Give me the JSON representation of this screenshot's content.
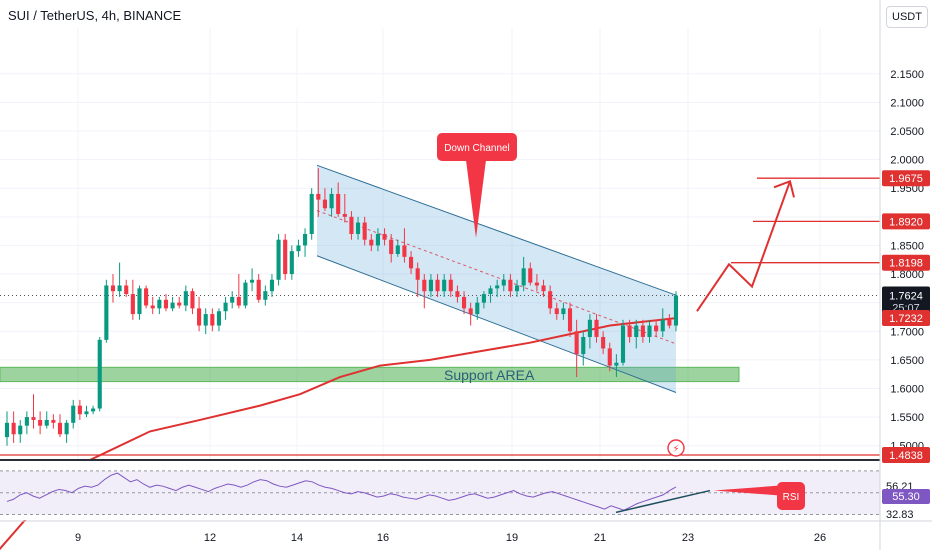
{
  "header": {
    "title": "SUI / TetherUS, 4h, BINANCE",
    "currency_button": "USDT"
  },
  "colors": {
    "up": "#089981",
    "down": "#f23645",
    "ma": "#e03131",
    "channel": "#2f6f96",
    "support": "#5cb85c"
  },
  "chart_data": {
    "type": "candlestick",
    "symbol": "SUI / TetherUS",
    "interval": "4h",
    "exchange": "BINANCE",
    "y_axis": {
      "range": [
        1.475,
        2.23
      ],
      "ticks": [
        "2.1500",
        "2.1000",
        "2.0500",
        "2.0000",
        "1.9500",
        "1.9000",
        "1.8500",
        "1.8000",
        "1.7500",
        "1.7000",
        "1.6500",
        "1.6000",
        "1.5500",
        "1.5000"
      ]
    },
    "x_axis": {
      "ticks": [
        "9",
        "12",
        "14",
        "16",
        "19",
        "21",
        "23",
        "26"
      ]
    },
    "price_labels": {
      "current": "1.7624",
      "countdown": "25:07",
      "ma_value": "1.7232",
      "levels": [
        "1.9675",
        "1.8920",
        "1.8198",
        "1.4838"
      ]
    },
    "candles": [
      {
        "o": 1.515,
        "h": 1.56,
        "l": 1.5,
        "c": 1.54
      },
      {
        "o": 1.54,
        "h": 1.56,
        "l": 1.505,
        "c": 1.52
      },
      {
        "o": 1.52,
        "h": 1.545,
        "l": 1.505,
        "c": 1.535
      },
      {
        "o": 1.535,
        "h": 1.56,
        "l": 1.52,
        "c": 1.55
      },
      {
        "o": 1.55,
        "h": 1.59,
        "l": 1.53,
        "c": 1.545
      },
      {
        "o": 1.545,
        "h": 1.56,
        "l": 1.52,
        "c": 1.535
      },
      {
        "o": 1.535,
        "h": 1.56,
        "l": 1.53,
        "c": 1.545
      },
      {
        "o": 1.545,
        "h": 1.555,
        "l": 1.53,
        "c": 1.54
      },
      {
        "o": 1.54,
        "h": 1.555,
        "l": 1.515,
        "c": 1.52
      },
      {
        "o": 1.52,
        "h": 1.545,
        "l": 1.505,
        "c": 1.54
      },
      {
        "o": 1.54,
        "h": 1.58,
        "l": 1.53,
        "c": 1.57
      },
      {
        "o": 1.57,
        "h": 1.58,
        "l": 1.545,
        "c": 1.555
      },
      {
        "o": 1.555,
        "h": 1.57,
        "l": 1.55,
        "c": 1.56
      },
      {
        "o": 1.56,
        "h": 1.57,
        "l": 1.555,
        "c": 1.565
      },
      {
        "o": 1.565,
        "h": 1.69,
        "l": 1.56,
        "c": 1.685
      },
      {
        "o": 1.685,
        "h": 1.79,
        "l": 1.68,
        "c": 1.78
      },
      {
        "o": 1.78,
        "h": 1.8,
        "l": 1.75,
        "c": 1.77
      },
      {
        "o": 1.77,
        "h": 1.82,
        "l": 1.76,
        "c": 1.78
      },
      {
        "o": 1.78,
        "h": 1.79,
        "l": 1.76,
        "c": 1.765
      },
      {
        "o": 1.765,
        "h": 1.79,
        "l": 1.72,
        "c": 1.73
      },
      {
        "o": 1.73,
        "h": 1.78,
        "l": 1.72,
        "c": 1.775
      },
      {
        "o": 1.775,
        "h": 1.78,
        "l": 1.74,
        "c": 1.745
      },
      {
        "o": 1.745,
        "h": 1.76,
        "l": 1.73,
        "c": 1.74
      },
      {
        "o": 1.74,
        "h": 1.76,
        "l": 1.73,
        "c": 1.755
      },
      {
        "o": 1.755,
        "h": 1.765,
        "l": 1.735,
        "c": 1.74
      },
      {
        "o": 1.74,
        "h": 1.76,
        "l": 1.735,
        "c": 1.75
      },
      {
        "o": 1.75,
        "h": 1.76,
        "l": 1.74,
        "c": 1.745
      },
      {
        "o": 1.745,
        "h": 1.78,
        "l": 1.735,
        "c": 1.77
      },
      {
        "o": 1.77,
        "h": 1.775,
        "l": 1.73,
        "c": 1.74
      },
      {
        "o": 1.74,
        "h": 1.76,
        "l": 1.7,
        "c": 1.71
      },
      {
        "o": 1.71,
        "h": 1.74,
        "l": 1.695,
        "c": 1.73
      },
      {
        "o": 1.73,
        "h": 1.74,
        "l": 1.7,
        "c": 1.71
      },
      {
        "o": 1.71,
        "h": 1.74,
        "l": 1.7,
        "c": 1.735
      },
      {
        "o": 1.735,
        "h": 1.76,
        "l": 1.72,
        "c": 1.75
      },
      {
        "o": 1.75,
        "h": 1.77,
        "l": 1.74,
        "c": 1.76
      },
      {
        "o": 1.76,
        "h": 1.8,
        "l": 1.74,
        "c": 1.745
      },
      {
        "o": 1.745,
        "h": 1.79,
        "l": 1.74,
        "c": 1.785
      },
      {
        "o": 1.785,
        "h": 1.81,
        "l": 1.77,
        "c": 1.79
      },
      {
        "o": 1.79,
        "h": 1.8,
        "l": 1.75,
        "c": 1.755
      },
      {
        "o": 1.755,
        "h": 1.78,
        "l": 1.745,
        "c": 1.77
      },
      {
        "o": 1.77,
        "h": 1.8,
        "l": 1.76,
        "c": 1.79
      },
      {
        "o": 1.79,
        "h": 1.87,
        "l": 1.78,
        "c": 1.86
      },
      {
        "o": 1.86,
        "h": 1.87,
        "l": 1.79,
        "c": 1.8
      },
      {
        "o": 1.8,
        "h": 1.85,
        "l": 1.79,
        "c": 1.84
      },
      {
        "o": 1.84,
        "h": 1.86,
        "l": 1.83,
        "c": 1.85
      },
      {
        "o": 1.85,
        "h": 1.88,
        "l": 1.83,
        "c": 1.87
      },
      {
        "o": 1.87,
        "h": 1.95,
        "l": 1.86,
        "c": 1.94
      },
      {
        "o": 1.94,
        "h": 1.985,
        "l": 1.9,
        "c": 1.93
      },
      {
        "o": 1.93,
        "h": 1.95,
        "l": 1.91,
        "c": 1.915
      },
      {
        "o": 1.915,
        "h": 1.95,
        "l": 1.9,
        "c": 1.94
      },
      {
        "o": 1.94,
        "h": 1.96,
        "l": 1.9,
        "c": 1.905
      },
      {
        "o": 1.905,
        "h": 1.94,
        "l": 1.89,
        "c": 1.9
      },
      {
        "o": 1.9,
        "h": 1.91,
        "l": 1.86,
        "c": 1.87
      },
      {
        "o": 1.87,
        "h": 1.9,
        "l": 1.86,
        "c": 1.89
      },
      {
        "o": 1.89,
        "h": 1.9,
        "l": 1.85,
        "c": 1.86
      },
      {
        "o": 1.86,
        "h": 1.87,
        "l": 1.84,
        "c": 1.85
      },
      {
        "o": 1.85,
        "h": 1.88,
        "l": 1.84,
        "c": 1.87
      },
      {
        "o": 1.87,
        "h": 1.88,
        "l": 1.85,
        "c": 1.86
      },
      {
        "o": 1.86,
        "h": 1.87,
        "l": 1.82,
        "c": 1.835
      },
      {
        "o": 1.835,
        "h": 1.86,
        "l": 1.83,
        "c": 1.85
      },
      {
        "o": 1.85,
        "h": 1.88,
        "l": 1.82,
        "c": 1.83
      },
      {
        "o": 1.83,
        "h": 1.84,
        "l": 1.8,
        "c": 1.81
      },
      {
        "o": 1.81,
        "h": 1.82,
        "l": 1.76,
        "c": 1.79
      },
      {
        "o": 1.79,
        "h": 1.8,
        "l": 1.74,
        "c": 1.77
      },
      {
        "o": 1.77,
        "h": 1.8,
        "l": 1.76,
        "c": 1.79
      },
      {
        "o": 1.79,
        "h": 1.8,
        "l": 1.76,
        "c": 1.77
      },
      {
        "o": 1.77,
        "h": 1.8,
        "l": 1.76,
        "c": 1.79
      },
      {
        "o": 1.79,
        "h": 1.8,
        "l": 1.76,
        "c": 1.77
      },
      {
        "o": 1.77,
        "h": 1.78,
        "l": 1.75,
        "c": 1.76
      },
      {
        "o": 1.76,
        "h": 1.77,
        "l": 1.73,
        "c": 1.74
      },
      {
        "o": 1.74,
        "h": 1.75,
        "l": 1.71,
        "c": 1.73
      },
      {
        "o": 1.73,
        "h": 1.76,
        "l": 1.72,
        "c": 1.75
      },
      {
        "o": 1.75,
        "h": 1.77,
        "l": 1.74,
        "c": 1.765
      },
      {
        "o": 1.765,
        "h": 1.78,
        "l": 1.75,
        "c": 1.775
      },
      {
        "o": 1.775,
        "h": 1.79,
        "l": 1.76,
        "c": 1.78
      },
      {
        "o": 1.78,
        "h": 1.8,
        "l": 1.77,
        "c": 1.79
      },
      {
        "o": 1.79,
        "h": 1.8,
        "l": 1.76,
        "c": 1.77
      },
      {
        "o": 1.77,
        "h": 1.79,
        "l": 1.76,
        "c": 1.78
      },
      {
        "o": 1.78,
        "h": 1.83,
        "l": 1.77,
        "c": 1.81
      },
      {
        "o": 1.81,
        "h": 1.82,
        "l": 1.78,
        "c": 1.785
      },
      {
        "o": 1.785,
        "h": 1.8,
        "l": 1.77,
        "c": 1.78
      },
      {
        "o": 1.78,
        "h": 1.79,
        "l": 1.76,
        "c": 1.77
      },
      {
        "o": 1.77,
        "h": 1.78,
        "l": 1.73,
        "c": 1.74
      },
      {
        "o": 1.74,
        "h": 1.75,
        "l": 1.72,
        "c": 1.73
      },
      {
        "o": 1.73,
        "h": 1.75,
        "l": 1.72,
        "c": 1.74
      },
      {
        "o": 1.74,
        "h": 1.75,
        "l": 1.69,
        "c": 1.7
      },
      {
        "o": 1.7,
        "h": 1.72,
        "l": 1.62,
        "c": 1.66
      },
      {
        "o": 1.66,
        "h": 1.7,
        "l": 1.64,
        "c": 1.69
      },
      {
        "o": 1.69,
        "h": 1.73,
        "l": 1.67,
        "c": 1.72
      },
      {
        "o": 1.72,
        "h": 1.73,
        "l": 1.68,
        "c": 1.69
      },
      {
        "o": 1.69,
        "h": 1.7,
        "l": 1.66,
        "c": 1.67
      },
      {
        "o": 1.67,
        "h": 1.68,
        "l": 1.63,
        "c": 1.64
      },
      {
        "o": 1.64,
        "h": 1.66,
        "l": 1.62,
        "c": 1.645
      },
      {
        "o": 1.645,
        "h": 1.72,
        "l": 1.64,
        "c": 1.71
      },
      {
        "o": 1.71,
        "h": 1.72,
        "l": 1.68,
        "c": 1.69
      },
      {
        "o": 1.69,
        "h": 1.72,
        "l": 1.67,
        "c": 1.71
      },
      {
        "o": 1.71,
        "h": 1.72,
        "l": 1.68,
        "c": 1.69
      },
      {
        "o": 1.69,
        "h": 1.72,
        "l": 1.68,
        "c": 1.71
      },
      {
        "o": 1.71,
        "h": 1.72,
        "l": 1.69,
        "c": 1.7
      },
      {
        "o": 1.7,
        "h": 1.74,
        "l": 1.69,
        "c": 1.72
      },
      {
        "o": 1.72,
        "h": 1.73,
        "l": 1.705,
        "c": 1.71
      },
      {
        "o": 1.71,
        "h": 1.77,
        "l": 1.7,
        "c": 1.7624
      }
    ],
    "moving_average": [
      {
        "x": -5,
        "y": 1.31
      },
      {
        "x": 45,
        "y": 1.41
      },
      {
        "x": 90,
        "y": 1.475
      },
      {
        "x": 150,
        "y": 1.525
      },
      {
        "x": 200,
        "y": 1.545
      },
      {
        "x": 260,
        "y": 1.57
      },
      {
        "x": 300,
        "y": 1.59
      },
      {
        "x": 340,
        "y": 1.62
      },
      {
        "x": 380,
        "y": 1.64
      },
      {
        "x": 430,
        "y": 1.65
      },
      {
        "x": 480,
        "y": 1.665
      },
      {
        "x": 530,
        "y": 1.68
      },
      {
        "x": 570,
        "y": 1.695
      },
      {
        "x": 610,
        "y": 1.71
      },
      {
        "x": 650,
        "y": 1.718
      },
      {
        "x": 676,
        "y": 1.723
      }
    ],
    "support_zone": {
      "label": "Support AREA",
      "low": 1.612,
      "high": 1.637
    },
    "channel": {
      "label": "Down Channel",
      "upper": [
        [
          317,
          1.99
        ],
        [
          676,
          1.763
        ]
      ],
      "lower": [
        [
          317,
          1.832
        ],
        [
          676,
          1.593
        ]
      ],
      "mid": [
        [
          317,
          1.911
        ],
        [
          676,
          1.678
        ]
      ]
    },
    "projection": [
      [
        697,
        1.735
      ],
      [
        729,
        1.817
      ],
      [
        752,
        1.778
      ],
      [
        790,
        1.962
      ]
    ],
    "horizontal_levels": [
      {
        "value": 1.9675,
        "from": 757
      },
      {
        "value": 1.892,
        "from": 753
      },
      {
        "value": 1.8198,
        "from": 731
      },
      {
        "value": 1.4838,
        "from": 0
      }
    ],
    "rsi": {
      "label": "RSI",
      "values_shown": [
        "56.21",
        "55.30",
        "32.83"
      ],
      "range": [
        25,
        80
      ],
      "levels": [
        70,
        50,
        30
      ],
      "series": [
        42,
        44,
        48,
        50,
        47,
        45,
        48,
        51,
        53,
        52,
        50,
        54,
        56,
        55,
        57,
        62,
        66,
        68,
        64,
        60,
        62,
        58,
        55,
        57,
        56,
        54,
        52,
        55,
        57,
        55,
        53,
        51,
        54,
        56,
        58,
        57,
        55,
        57,
        60,
        62,
        61,
        58,
        56,
        55,
        57,
        59,
        61,
        60,
        57,
        55,
        54,
        52,
        50,
        49,
        51,
        50,
        48,
        46,
        47,
        49,
        48,
        46,
        45,
        44,
        46,
        48,
        47,
        45,
        43,
        44,
        46,
        48,
        49,
        47,
        45,
        46,
        48,
        50,
        52,
        49,
        47,
        46,
        48,
        50,
        51,
        49,
        47,
        45,
        43,
        41,
        39,
        37,
        35,
        38,
        36,
        34,
        37,
        40,
        42,
        44,
        46,
        48,
        52,
        55.3
      ]
    }
  }
}
